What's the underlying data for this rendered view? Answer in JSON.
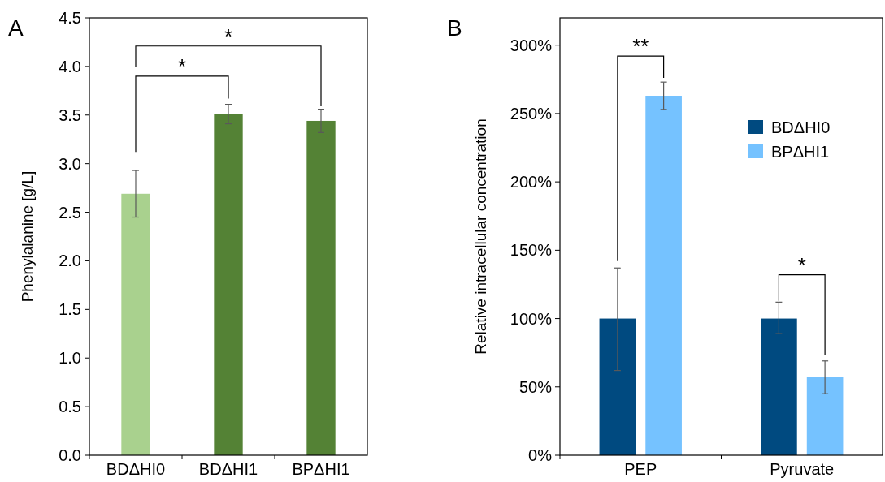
{
  "chart_data": [
    {
      "type": "bar",
      "title": "A",
      "ylabel": "Phenylalanine [g/L]",
      "categories": [
        "BDΔHI0",
        "BDΔHI1",
        "BPΔHI1"
      ],
      "values": [
        2.69,
        3.51,
        3.44
      ],
      "colors": [
        "#a9d18e",
        "#548235",
        "#548235"
      ],
      "errors": [
        [
          2.45,
          2.93
        ],
        [
          3.41,
          3.61
        ],
        [
          3.32,
          3.56
        ]
      ],
      "ylim": [
        0,
        4.5
      ],
      "yticks": [
        {
          "value": 0,
          "label": "0.0"
        },
        0.5,
        {
          "value": 1,
          "label": "1.0"
        },
        1.5,
        {
          "value": 2,
          "label": "2.0"
        },
        2.5,
        {
          "value": 3,
          "label": "3.0"
        },
        3.5,
        {
          "value": 4,
          "label": "4.0"
        },
        4.5
      ],
      "annotations": [
        "*",
        "*"
      ],
      "grid": false,
      "legend": false
    },
    {
      "type": "bar",
      "title": "B",
      "ylabel": "Relative intracellular concentration",
      "categories": [
        "PEP",
        "Pyruvate"
      ],
      "series": [
        {
          "name": "BDΔHI0",
          "color": "#004a80",
          "values": [
            100,
            100
          ],
          "errors": [
            [
              62,
              137
            ],
            [
              89,
              112
            ]
          ]
        },
        {
          "name": "BPΔHI1",
          "color": "#75c2ff",
          "values": [
            263,
            57
          ],
          "errors": [
            [
              253,
              273
            ],
            [
              45,
              69
            ]
          ]
        }
      ],
      "ylim": [
        0,
        320
      ],
      "yticks": [
        {
          "value": 0,
          "label": "0%"
        },
        {
          "value": 50,
          "label": "50%"
        },
        {
          "value": 100,
          "label": "100%"
        },
        {
          "value": 150,
          "label": "150%"
        },
        {
          "value": 200,
          "label": "200%"
        },
        {
          "value": 250,
          "label": "250%"
        },
        {
          "value": 300,
          "label": "300%"
        }
      ],
      "annotations": [
        "**",
        "*"
      ],
      "grid": false,
      "legend": "top right"
    }
  ]
}
